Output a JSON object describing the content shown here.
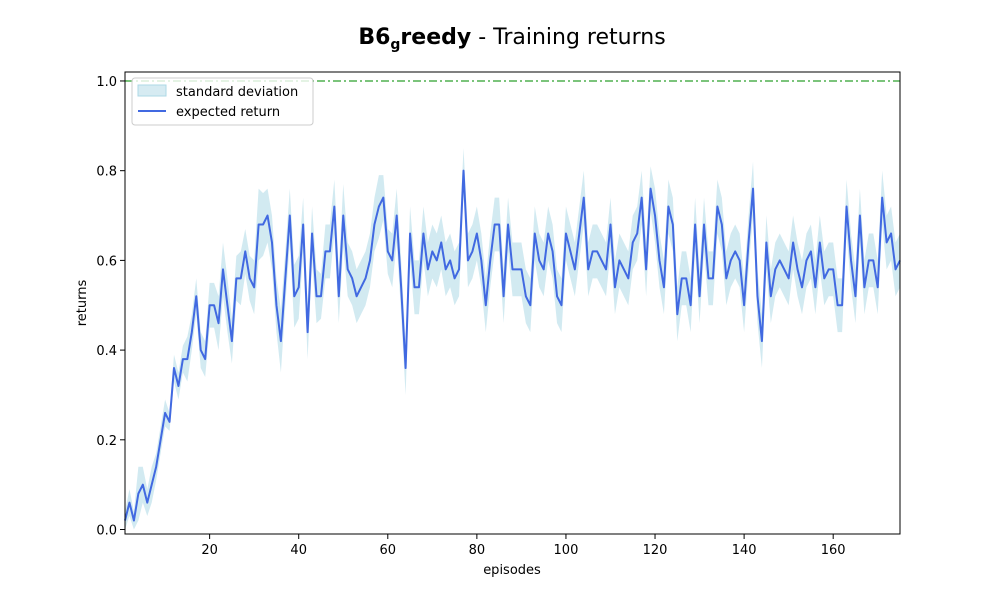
{
  "chart_data": {
    "type": "line",
    "title": {
      "bold_main": "B6",
      "bold_sub": "g",
      "bold_rest": "reedy",
      "rest": " - Training returns"
    },
    "xlabel": "episodes",
    "ylabel": "returns",
    "xlim": [
      1,
      175
    ],
    "ylim": [
      -0.01,
      1.02
    ],
    "x_ticks": [
      20,
      40,
      60,
      80,
      100,
      120,
      140,
      160
    ],
    "y_ticks": [
      0.0,
      0.2,
      0.4,
      0.6,
      0.8,
      1.0
    ],
    "y_tick_labels": [
      "0.0",
      "0.2",
      "0.4",
      "0.6",
      "0.8",
      "1.0"
    ],
    "grid": false,
    "legend_position": "top-left",
    "reference_line": {
      "y": 1.0,
      "color": "#2ca02c",
      "style": "dash-dot"
    },
    "series": [
      {
        "name": "expected return",
        "color": "#4169e1",
        "x_start": 1,
        "values": [
          0.02,
          0.06,
          0.02,
          0.08,
          0.1,
          0.06,
          0.1,
          0.14,
          0.2,
          0.26,
          0.24,
          0.36,
          0.32,
          0.38,
          0.38,
          0.44,
          0.52,
          0.4,
          0.38,
          0.5,
          0.5,
          0.46,
          0.58,
          0.5,
          0.42,
          0.56,
          0.56,
          0.62,
          0.56,
          0.54,
          0.68,
          0.68,
          0.7,
          0.64,
          0.5,
          0.42,
          0.56,
          0.7,
          0.52,
          0.54,
          0.68,
          0.44,
          0.66,
          0.52,
          0.52,
          0.62,
          0.62,
          0.72,
          0.52,
          0.7,
          0.58,
          0.56,
          0.52,
          0.54,
          0.56,
          0.6,
          0.68,
          0.72,
          0.74,
          0.62,
          0.6,
          0.7,
          0.54,
          0.36,
          0.66,
          0.54,
          0.54,
          0.66,
          0.58,
          0.62,
          0.6,
          0.64,
          0.58,
          0.6,
          0.56,
          0.58,
          0.8,
          0.6,
          0.62,
          0.66,
          0.6,
          0.5,
          0.6,
          0.68,
          0.68,
          0.52,
          0.68,
          0.58,
          0.58,
          0.58,
          0.52,
          0.5,
          0.66,
          0.6,
          0.58,
          0.66,
          0.62,
          0.52,
          0.5,
          0.66,
          0.62,
          0.58,
          0.66,
          0.74,
          0.58,
          0.62,
          0.62,
          0.6,
          0.58,
          0.68,
          0.54,
          0.6,
          0.58,
          0.56,
          0.64,
          0.66,
          0.74,
          0.58,
          0.76,
          0.7,
          0.6,
          0.54,
          0.72,
          0.68,
          0.48,
          0.56,
          0.56,
          0.5,
          0.68,
          0.52,
          0.68,
          0.56,
          0.56,
          0.72,
          0.68,
          0.56,
          0.6,
          0.62,
          0.6,
          0.5,
          0.64,
          0.76,
          0.52,
          0.42,
          0.64,
          0.52,
          0.58,
          0.6,
          0.58,
          0.56,
          0.64,
          0.58,
          0.54,
          0.6,
          0.62,
          0.54,
          0.64,
          0.56,
          0.58,
          0.58,
          0.5,
          0.5,
          0.72,
          0.6,
          0.52,
          0.7,
          0.54,
          0.6,
          0.6,
          0.54,
          0.74,
          0.64,
          0.66,
          0.58,
          0.6
        ]
      }
    ],
    "band": {
      "name": "standard deviation",
      "color": "#add8e6",
      "spread": [
        0.02,
        0.03,
        0.02,
        0.06,
        0.04,
        0.03,
        0.04,
        0.03,
        0.03,
        0.03,
        0.02,
        0.03,
        0.03,
        0.03,
        0.05,
        0.04,
        0.04,
        0.04,
        0.04,
        0.05,
        0.05,
        0.06,
        0.06,
        0.06,
        0.05,
        0.05,
        0.06,
        0.05,
        0.05,
        0.06,
        0.08,
        0.07,
        0.06,
        0.06,
        0.06,
        0.07,
        0.06,
        0.06,
        0.07,
        0.07,
        0.06,
        0.06,
        0.06,
        0.06,
        0.05,
        0.06,
        0.06,
        0.06,
        0.06,
        0.07,
        0.06,
        0.06,
        0.06,
        0.06,
        0.06,
        0.06,
        0.06,
        0.07,
        0.05,
        0.05,
        0.06,
        0.06,
        0.06,
        0.06,
        0.06,
        0.06,
        0.06,
        0.06,
        0.06,
        0.06,
        0.06,
        0.06,
        0.06,
        0.06,
        0.06,
        0.06,
        0.05,
        0.06,
        0.06,
        0.06,
        0.06,
        0.06,
        0.06,
        0.06,
        0.06,
        0.06,
        0.06,
        0.06,
        0.06,
        0.06,
        0.06,
        0.06,
        0.06,
        0.06,
        0.06,
        0.06,
        0.06,
        0.06,
        0.06,
        0.06,
        0.06,
        0.06,
        0.06,
        0.06,
        0.06,
        0.06,
        0.06,
        0.06,
        0.06,
        0.06,
        0.06,
        0.06,
        0.06,
        0.06,
        0.06,
        0.06,
        0.06,
        0.06,
        0.05,
        0.06,
        0.06,
        0.06,
        0.06,
        0.06,
        0.06,
        0.06,
        0.06,
        0.06,
        0.06,
        0.06,
        0.06,
        0.06,
        0.06,
        0.06,
        0.06,
        0.06,
        0.06,
        0.06,
        0.06,
        0.06,
        0.06,
        0.06,
        0.06,
        0.06,
        0.06,
        0.06,
        0.06,
        0.06,
        0.06,
        0.06,
        0.06,
        0.06,
        0.06,
        0.06,
        0.06,
        0.06,
        0.06,
        0.06,
        0.06,
        0.06,
        0.06,
        0.06,
        0.06,
        0.06,
        0.06,
        0.06,
        0.06,
        0.06,
        0.06,
        0.06,
        0.06,
        0.06,
        0.06,
        0.06,
        0.06,
        0.06,
        0.06
      ]
    }
  }
}
